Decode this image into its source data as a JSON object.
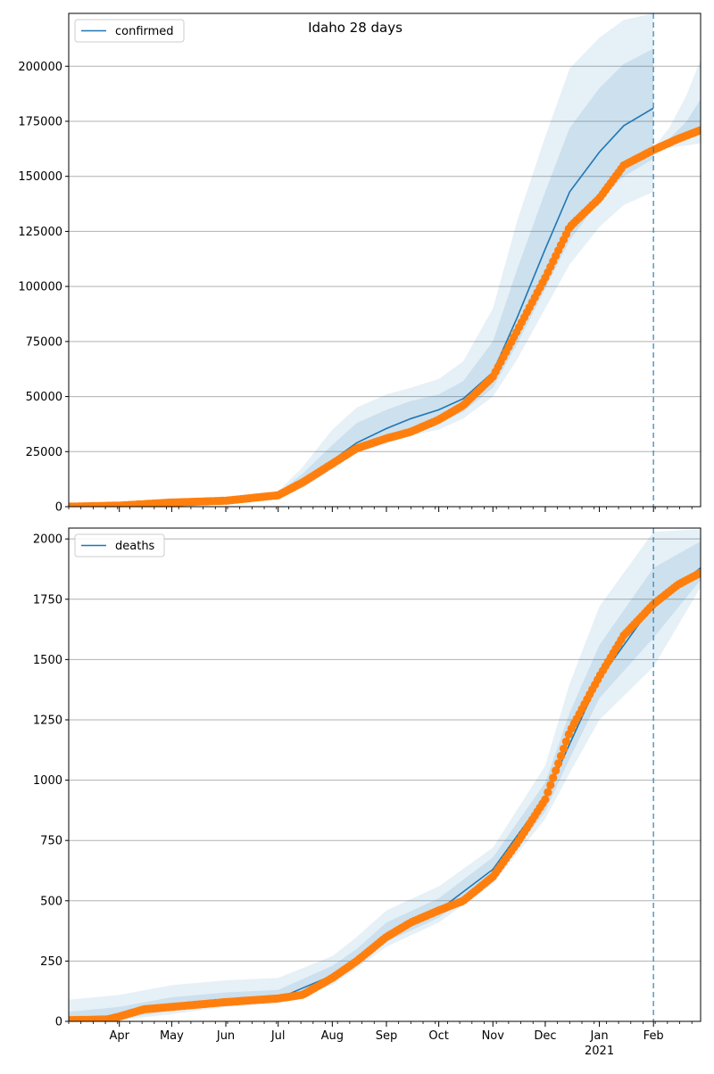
{
  "title": "Idaho 28 days",
  "chart_data": [
    {
      "type": "line",
      "legend": "confirmed",
      "legend_position": "top-left",
      "x_range": [
        "2020-03-03",
        "2021-02-28"
      ],
      "ylim": [
        0,
        224000
      ],
      "yticks": [
        0,
        25000,
        50000,
        75000,
        100000,
        125000,
        150000,
        175000,
        200000
      ],
      "grid": "horizontal",
      "forecast_start": "2021-02-01",
      "colors": {
        "model": "#1f77b4",
        "observed": "#ff7f0e",
        "band": "#1f77b4"
      },
      "series": [
        {
          "name": "confirmed",
          "kind": "model",
          "x": [
            "2020-03-03",
            "2020-04-01",
            "2020-05-01",
            "2020-06-01",
            "2020-07-01",
            "2020-07-15",
            "2020-08-01",
            "2020-08-15",
            "2020-09-01",
            "2020-09-15",
            "2020-10-01",
            "2020-10-15",
            "2020-11-01",
            "2020-11-15",
            "2020-12-01",
            "2020-12-15",
            "2021-01-01",
            "2021-01-15",
            "2021-02-01"
          ],
          "y": [
            0,
            400,
            1800,
            2800,
            5500,
            12000,
            21000,
            29000,
            35500,
            40000,
            44000,
            49000,
            61000,
            86000,
            117000,
            143000,
            161000,
            173000,
            181000
          ]
        },
        {
          "name": "observed",
          "kind": "observed",
          "x": [
            "2020-03-03",
            "2020-04-01",
            "2020-05-01",
            "2020-06-01",
            "2020-07-01",
            "2020-07-15",
            "2020-08-01",
            "2020-08-15",
            "2020-09-01",
            "2020-09-15",
            "2020-10-01",
            "2020-10-15",
            "2020-11-01",
            "2020-11-15",
            "2020-12-01",
            "2020-12-15",
            "2021-01-01",
            "2021-01-15",
            "2021-02-01",
            "2021-02-15",
            "2021-02-28"
          ],
          "y": [
            0,
            500,
            1900,
            2700,
            5200,
            11000,
            19500,
            26500,
            31000,
            34000,
            39500,
            46000,
            59000,
            80000,
            104000,
            127000,
            140000,
            155000,
            162000,
            167000,
            171000
          ]
        }
      ],
      "bands": [
        {
          "upper": [
            0,
            500,
            2000,
            3200,
            7000,
            18000,
            35000,
            45000,
            51000,
            54000,
            58000,
            66000,
            90000,
            130000,
            168000,
            199000,
            213000,
            221000,
            224000,
            null,
            null
          ],
          "lower": [
            0,
            300,
            1500,
            2400,
            4500,
            8500,
            17000,
            24500,
            28500,
            32500,
            35000,
            40000,
            50000,
            67000,
            90000,
            110000,
            127000,
            137000,
            143000,
            null,
            null
          ]
        },
        {
          "upper": [
            0,
            450,
            1900,
            3000,
            6300,
            15000,
            28000,
            38000,
            44000,
            48000,
            51000,
            57000,
            75000,
            108000,
            143000,
            172000,
            190000,
            201000,
            208000,
            null,
            null
          ],
          "lower": [
            0,
            350,
            1650,
            2600,
            4900,
            10000,
            19000,
            26500,
            31000,
            35000,
            38000,
            43000,
            54000,
            74000,
            99000,
            121000,
            139000,
            150000,
            158000,
            null,
            null
          ]
        }
      ],
      "forecast_bands": {
        "x": [
          "2021-02-01",
          "2021-02-10",
          "2021-02-20",
          "2021-02-28"
        ],
        "upper": [
          163000,
          172000,
          187000,
          203000
        ],
        "mid_upper": [
          163000,
          167000,
          175000,
          185000
        ],
        "mid_lower": [
          163000,
          165000,
          168000,
          169000
        ],
        "lower": [
          162000,
          163000,
          164000,
          165000
        ]
      }
    },
    {
      "type": "line",
      "legend": "deaths",
      "legend_position": "top-left",
      "x_range": [
        "2020-03-03",
        "2021-02-28"
      ],
      "ylim": [
        0,
        2045
      ],
      "yticks": [
        0,
        250,
        500,
        750,
        1000,
        1250,
        1500,
        1750,
        2000
      ],
      "grid": "horizontal",
      "forecast_start": "2021-02-01",
      "xticks": [
        "Apr",
        "May",
        "Jun",
        "Jul",
        "Aug",
        "Sep",
        "Oct",
        "Nov",
        "Dec",
        "Jan",
        "Feb"
      ],
      "xtick_dates": [
        "2020-04-01",
        "2020-05-01",
        "2020-06-01",
        "2020-07-01",
        "2020-08-01",
        "2020-09-01",
        "2020-10-01",
        "2020-11-01",
        "2020-12-01",
        "2021-01-01",
        "2021-02-01"
      ],
      "year_label": "2021",
      "colors": {
        "model": "#1f77b4",
        "observed": "#ff7f0e",
        "band": "#1f77b4"
      },
      "series": [
        {
          "name": "deaths",
          "kind": "model",
          "x": [
            "2020-03-03",
            "2020-04-01",
            "2020-05-01",
            "2020-06-01",
            "2020-07-01",
            "2020-08-01",
            "2020-08-15",
            "2020-09-01",
            "2020-10-01",
            "2020-11-01",
            "2020-12-01",
            "2020-12-15",
            "2021-01-01",
            "2021-02-01",
            "2021-02-28"
          ],
          "y": [
            5,
            20,
            60,
            85,
            95,
            190,
            260,
            360,
            460,
            630,
            930,
            1150,
            1420,
            1730,
            1880
          ]
        },
        {
          "name": "observed",
          "kind": "observed",
          "x": [
            "2020-03-03",
            "2020-03-25",
            "2020-04-01",
            "2020-04-15",
            "2020-05-01",
            "2020-06-01",
            "2020-07-01",
            "2020-07-15",
            "2020-08-01",
            "2020-08-15",
            "2020-09-01",
            "2020-09-15",
            "2020-10-01",
            "2020-10-15",
            "2020-11-01",
            "2020-11-15",
            "2020-12-01",
            "2020-12-15",
            "2021-01-01",
            "2021-01-15",
            "2021-02-01",
            "2021-02-15",
            "2021-02-28"
          ],
          "y": [
            5,
            8,
            20,
            50,
            60,
            80,
            95,
            110,
            180,
            250,
            350,
            410,
            460,
            500,
            600,
            740,
            920,
            1200,
            1430,
            1600,
            1730,
            1810,
            1860
          ]
        }
      ],
      "bands": [
        {
          "upper": [
            90,
            110,
            150,
            170,
            180,
            270,
            350,
            460,
            560,
            720,
            1060,
            1400,
            1720,
            2030,
            2040
          ],
          "lower": [
            0,
            5,
            30,
            60,
            75,
            150,
            220,
            310,
            410,
            570,
            840,
            1030,
            1250,
            1470,
            1800
          ]
        },
        {
          "upper": [
            40,
            60,
            100,
            120,
            130,
            230,
            300,
            410,
            510,
            680,
            990,
            1280,
            1560,
            1880,
            1990
          ],
          "lower": [
            0,
            10,
            45,
            70,
            85,
            165,
            240,
            330,
            430,
            590,
            870,
            1090,
            1340,
            1590,
            1830
          ]
        }
      ]
    }
  ]
}
